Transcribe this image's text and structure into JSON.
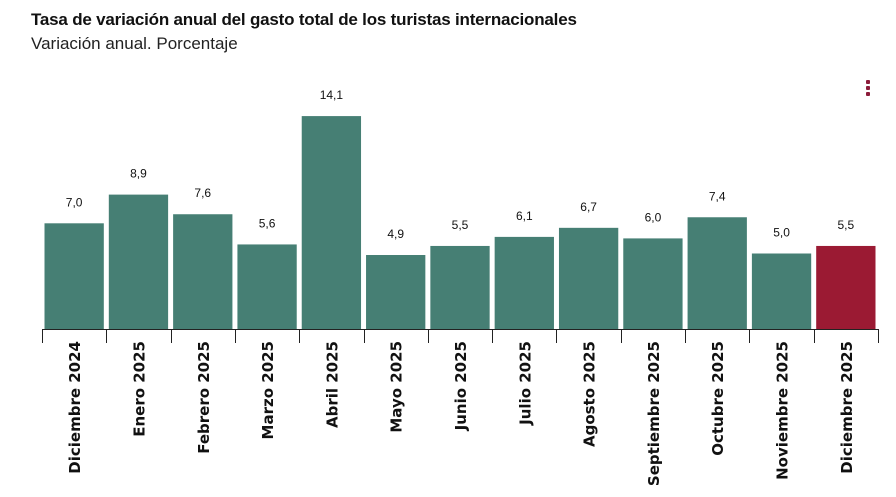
{
  "chart_data": {
    "type": "bar",
    "title": "Tasa de variación anual del gasto total de los turistas internacionales",
    "subtitle": "Variación anual. Porcentaje",
    "categories": [
      "Diciembre 2024",
      "Enero 2025",
      "Febrero 2025",
      "Marzo 2025",
      "Abril 2025",
      "Mayo 2025",
      "Junio 2025",
      "Julio 2025",
      "Agosto 2025",
      "Septiembre 2025",
      "Octubre 2025",
      "Noviembre 2025",
      "Diciembre 2025"
    ],
    "values": [
      7.0,
      8.9,
      7.6,
      5.6,
      14.1,
      4.9,
      5.5,
      6.1,
      6.7,
      6.0,
      7.4,
      5.0,
      5.5
    ],
    "data_labels": [
      "7,0",
      "8,9",
      "7,6",
      "5,6",
      "14,1",
      "4,9",
      "5,5",
      "6,1",
      "6,7",
      "6,0",
      "7,4",
      "5,0",
      "5,5"
    ],
    "highlight_index": 12,
    "colors": {
      "bar": "#467f74",
      "highlight": "#9b1a33"
    },
    "xlabel": "",
    "ylabel": "",
    "ylim": [
      0,
      15
    ],
    "grid": false,
    "legend": "none"
  },
  "menu": {
    "icon": "more-vertical-icon"
  }
}
